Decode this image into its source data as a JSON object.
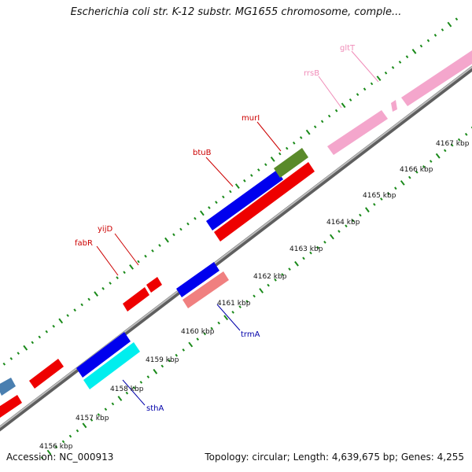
{
  "title": "Escherichia coli str. K-12 substr. MG1655 chromosome, comple...",
  "footer": {
    "accession": "Accession: NC_000913",
    "stats": "Topology: circular; Length: 4,639,675 bp; Genes: 4,255"
  },
  "scale": {
    "unit": "kbp",
    "ticks": [
      "4156 kbp",
      "4157 kbp",
      "4158 kbp",
      "4159 kbp",
      "4160 kbp",
      "4161 kbp",
      "4162 kbp",
      "4163 kbp",
      "4164 kbp",
      "4165 kbp",
      "4166 kbp",
      "4167 kbp"
    ]
  },
  "colors": {
    "backbone": "#8a8a8a",
    "tick": "#1a8a1a",
    "forward_label": "#cc0000",
    "reverse_label": "#0000aa",
    "rrna_label": "#e87aa8"
  },
  "genes": [
    {
      "name": "fabR",
      "label_color": "#cc0000"
    },
    {
      "name": "yijD",
      "label_color": "#cc0000"
    },
    {
      "name": "btuB",
      "label_color": "#cc0000"
    },
    {
      "name": "murI",
      "label_color": "#cc0000"
    },
    {
      "name": "rrsB",
      "label_color": "#f08cb8"
    },
    {
      "name": "gltT",
      "label_color": "#f08cb8"
    },
    {
      "name": "trmA",
      "label_color": "#0000aa"
    },
    {
      "name": "sthA",
      "label_color": "#0000aa"
    }
  ]
}
